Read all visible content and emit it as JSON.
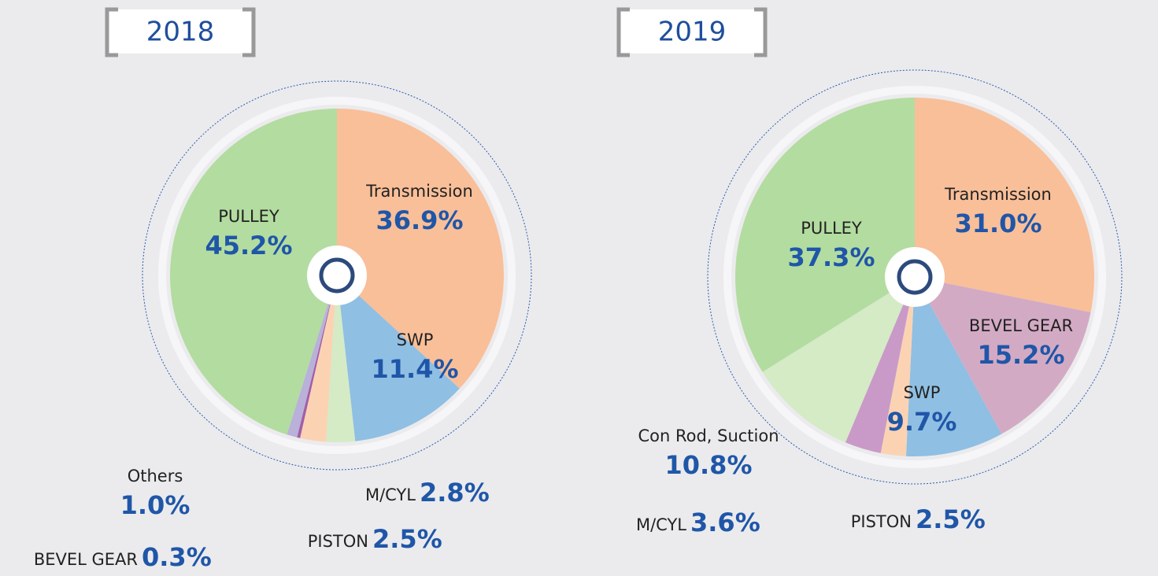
{
  "chart_data": [
    {
      "type": "pie",
      "title": "2018",
      "categories": [
        "Transmission",
        "SWP",
        "M/CYL",
        "PISTON",
        "BEVEL GEAR",
        "Others",
        "PULLEY"
      ],
      "values": [
        36.9,
        11.4,
        2.8,
        2.5,
        0.3,
        1.0,
        45.2
      ],
      "value_labels": [
        "36.9%",
        "11.4%",
        "2.8%",
        "2.5%",
        "0.3%",
        "1.0%",
        "45.2%"
      ],
      "colors": [
        "#f9bf99",
        "#8fbfe3",
        "#d4ebc6",
        "#fbd3b3",
        "#a35ea8",
        "#b9b1d9",
        "#b3dca0"
      ]
    },
    {
      "type": "pie",
      "title": "2019",
      "categories": [
        "Transmission",
        "BEVEL GEAR",
        "SWP",
        "PISTON",
        "M/CYL",
        "Con Rod, Suction",
        "PULLEY"
      ],
      "values": [
        31.0,
        15.2,
        9.7,
        2.5,
        3.6,
        10.8,
        37.3
      ],
      "value_labels": [
        "31.0%",
        "15.2%",
        "9.7%",
        "2.5%",
        "3.6%",
        "10.8%",
        "37.3%"
      ],
      "colors": [
        "#f9bf99",
        "#d3aac4",
        "#8fbfe3",
        "#fbd3b3",
        "#c99ac7",
        "#d4ebc6",
        "#b3dca0"
      ]
    }
  ]
}
